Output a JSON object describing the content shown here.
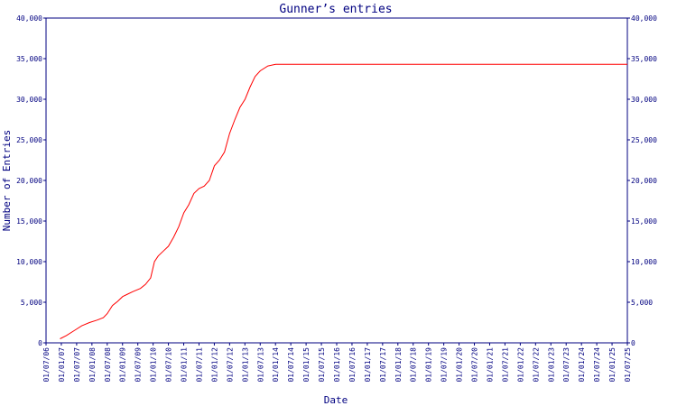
{
  "colors": {
    "axis": "#000080",
    "line": "#ff0000",
    "background": "#ffffff"
  },
  "chart_data": {
    "type": "line",
    "title": "Gunner’s entries",
    "xlabel": "Date",
    "ylabel": "Number of Entries",
    "ylim": [
      0,
      40000
    ],
    "xlim": [
      "2006-07-01",
      "2025-07-01"
    ],
    "grid": false,
    "y_ticks": [
      {
        "value": 0,
        "label": "0"
      },
      {
        "value": 5000,
        "label": "5,000"
      },
      {
        "value": 10000,
        "label": "10,000"
      },
      {
        "value": 15000,
        "label": "15,000"
      },
      {
        "value": 20000,
        "label": "20,000"
      },
      {
        "value": 25000,
        "label": "25,000"
      },
      {
        "value": 30000,
        "label": "30,000"
      },
      {
        "value": 35000,
        "label": "35,000"
      },
      {
        "value": 40000,
        "label": "40,000"
      }
    ],
    "x_ticks": [
      "01/07/06",
      "01/01/07",
      "01/07/07",
      "01/01/08",
      "01/07/08",
      "01/01/09",
      "01/07/09",
      "01/01/10",
      "01/07/10",
      "01/01/11",
      "01/07/11",
      "01/01/12",
      "01/07/12",
      "01/01/13",
      "01/07/13",
      "01/01/14",
      "01/07/14",
      "01/01/15",
      "01/07/15",
      "01/01/16",
      "01/07/16",
      "01/01/17",
      "01/07/17",
      "01/01/18",
      "01/07/18",
      "01/01/19",
      "01/07/19",
      "01/01/20",
      "01/07/20",
      "01/01/21",
      "01/07/21",
      "01/01/22",
      "01/07/22",
      "01/01/23",
      "01/07/23",
      "01/01/24",
      "01/07/24",
      "01/01/25",
      "01/07/25"
    ],
    "series": [
      {
        "points": [
          {
            "x": "2006-12-15",
            "y": 500
          },
          {
            "x": "2007-03-01",
            "y": 900
          },
          {
            "x": "2007-06-01",
            "y": 1500
          },
          {
            "x": "2007-09-01",
            "y": 2100
          },
          {
            "x": "2007-12-01",
            "y": 2500
          },
          {
            "x": "2008-03-01",
            "y": 2800
          },
          {
            "x": "2008-05-15",
            "y": 3100
          },
          {
            "x": "2008-07-01",
            "y": 3600
          },
          {
            "x": "2008-09-01",
            "y": 4600
          },
          {
            "x": "2008-11-01",
            "y": 5100
          },
          {
            "x": "2009-01-01",
            "y": 5700
          },
          {
            "x": "2009-03-01",
            "y": 6000
          },
          {
            "x": "2009-05-01",
            "y": 6300
          },
          {
            "x": "2009-08-01",
            "y": 6700
          },
          {
            "x": "2009-10-01",
            "y": 7200
          },
          {
            "x": "2009-12-01",
            "y": 8000
          },
          {
            "x": "2010-01-15",
            "y": 10000
          },
          {
            "x": "2010-03-01",
            "y": 10700
          },
          {
            "x": "2010-05-01",
            "y": 11300
          },
          {
            "x": "2010-07-01",
            "y": 11900
          },
          {
            "x": "2010-09-01",
            "y": 13000
          },
          {
            "x": "2010-11-01",
            "y": 14300
          },
          {
            "x": "2011-01-01",
            "y": 16000
          },
          {
            "x": "2011-03-01",
            "y": 17000
          },
          {
            "x": "2011-05-01",
            "y": 18400
          },
          {
            "x": "2011-07-01",
            "y": 19000
          },
          {
            "x": "2011-09-01",
            "y": 19300
          },
          {
            "x": "2011-11-01",
            "y": 20000
          },
          {
            "x": "2012-01-01",
            "y": 21800
          },
          {
            "x": "2012-03-01",
            "y": 22500
          },
          {
            "x": "2012-05-01",
            "y": 23500
          },
          {
            "x": "2012-07-01",
            "y": 25800
          },
          {
            "x": "2012-09-01",
            "y": 27500
          },
          {
            "x": "2012-11-01",
            "y": 29000
          },
          {
            "x": "2013-01-01",
            "y": 30000
          },
          {
            "x": "2013-03-01",
            "y": 31500
          },
          {
            "x": "2013-05-01",
            "y": 32800
          },
          {
            "x": "2013-07-01",
            "y": 33500
          },
          {
            "x": "2013-10-01",
            "y": 34100
          },
          {
            "x": "2014-01-01",
            "y": 34300
          },
          {
            "x": "2025-07-01",
            "y": 34300
          }
        ]
      }
    ]
  }
}
